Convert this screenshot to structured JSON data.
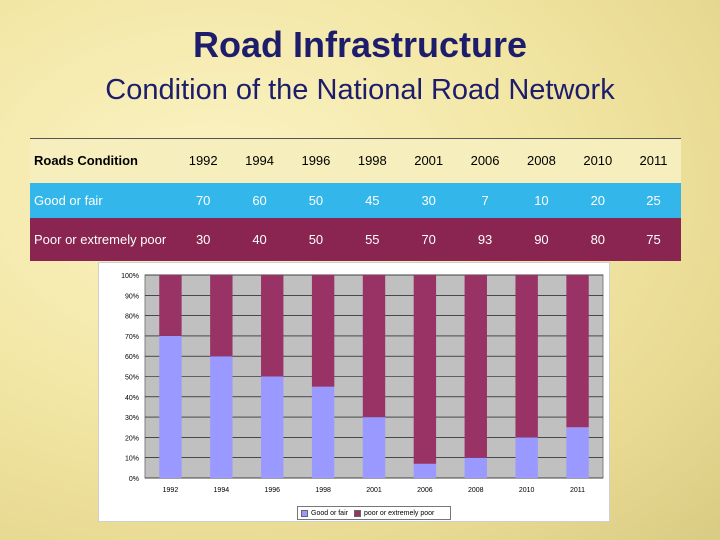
{
  "slide": {
    "title": "Road Infrastructure",
    "subtitle": "Condition of the National Road Network"
  },
  "table": {
    "header_label": "Roads Condition",
    "years": [
      "1992",
      "1994",
      "1996",
      "1998",
      "2001",
      "2006",
      "2008",
      "2010",
      "2011"
    ],
    "rows": [
      {
        "label": "Good or fair",
        "values": [
          "70",
          "60",
          "50",
          "45",
          "30",
          "7",
          "10",
          "20",
          "25"
        ]
      },
      {
        "label": "Poor or extremely poor",
        "values": [
          "30",
          "40",
          "50",
          "55",
          "70",
          "93",
          "90",
          "80",
          "75"
        ]
      }
    ]
  },
  "chart_data": {
    "type": "bar",
    "stacked": true,
    "percent_stacked": true,
    "categories": [
      "1992",
      "1994",
      "1996",
      "1998",
      "2001",
      "2006",
      "2008",
      "2010",
      "2011"
    ],
    "series": [
      {
        "name": "Good or fair",
        "values": [
          70,
          60,
          50,
          45,
          30,
          7,
          10,
          20,
          25
        ],
        "color": "#9999ff"
      },
      {
        "name": "poor or extremely poor",
        "values": [
          30,
          40,
          50,
          55,
          70,
          93,
          90,
          80,
          75
        ],
        "color": "#993366"
      }
    ],
    "ylim": [
      0,
      100
    ],
    "yticks": [
      "0%",
      "10%",
      "20%",
      "30%",
      "40%",
      "50%",
      "60%",
      "70%",
      "80%",
      "90%",
      "100%"
    ],
    "grid": true,
    "legend_position": "bottom",
    "plot_background": "#c0c0c0"
  }
}
